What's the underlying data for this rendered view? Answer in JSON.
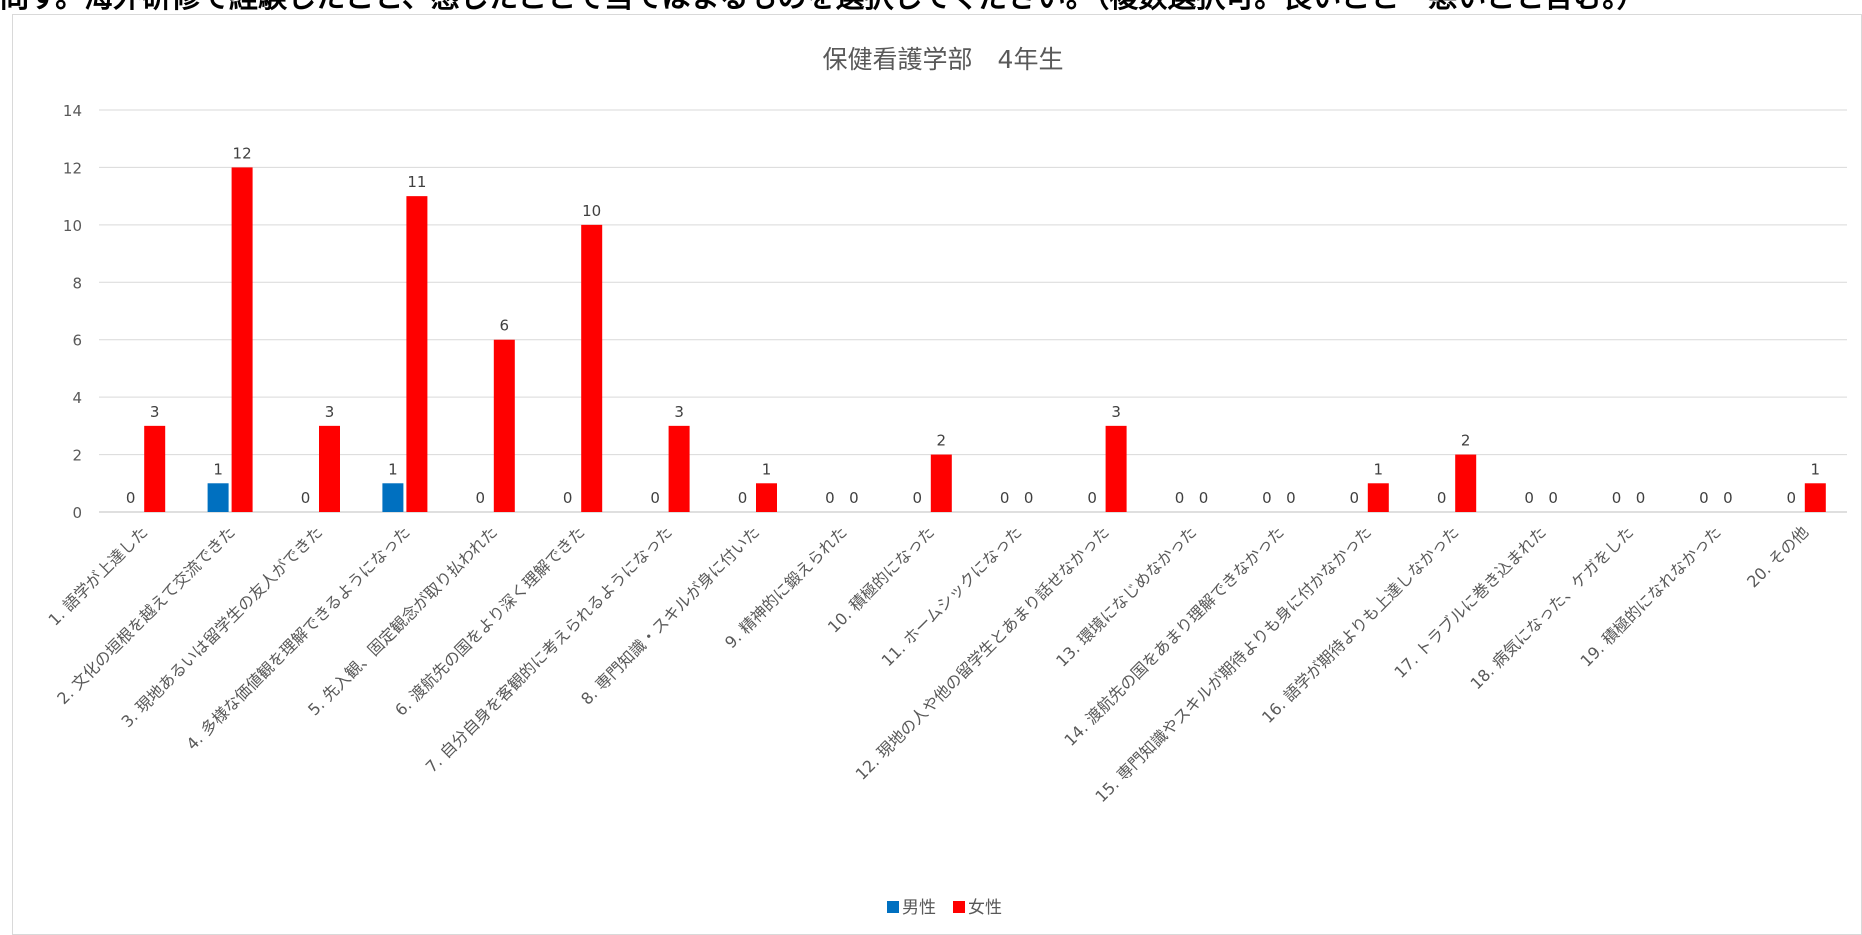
{
  "question": {
    "text": "問す。海外研修で経験したこと、感じたことで当てはまるものを選択してください。（複数選択可。良いこと・悪いこと含む。）"
  },
  "chart_data": {
    "type": "bar",
    "title": "保健看護学部　4年生",
    "xlabel": "",
    "ylabel": "",
    "ylim": [
      0,
      14
    ],
    "yticks": [
      0,
      2,
      4,
      6,
      8,
      10,
      12,
      14
    ],
    "grid": true,
    "legend_position": "bottom",
    "categories": [
      "1. 語学が上達した",
      "2. 文化の垣根を越えて交流できた",
      "3. 現地あるいは留学生の友人ができた",
      "4. 多様な価値観を理解できるようになった",
      "5. 先入観、固定観念が取り払われた",
      "6. 渡航先の国をより深く理解できた",
      "7. 自分自身を客観的に考えられるようになった",
      "8. 専門知識・スキルが身に付いた",
      "9. 精神的に鍛えられた",
      "10. 積極的になった",
      "11. ホームシックになった",
      "12. 現地の人や他の留学生とあまり話せなかった",
      "13. 環境になじめなかった",
      "14. 渡航先の国をあまり理解できなかった",
      "15. 専門知識やスキルが期待よりも身に付かなかった",
      "16. 語学が期待よりも上達しなかった",
      "17. トラブルに巻き込まれた",
      "18. 病気になった、ケガをした",
      "19. 積極的になれなかった",
      "20. その他"
    ],
    "series": [
      {
        "name": "男性",
        "color": "#0070c0",
        "values": [
          0,
          1,
          0,
          1,
          0,
          0,
          0,
          0,
          0,
          0,
          0,
          0,
          0,
          0,
          0,
          0,
          0,
          0,
          0,
          0
        ]
      },
      {
        "name": "女性",
        "color": "#ff0000",
        "values": [
          3,
          12,
          3,
          11,
          6,
          10,
          3,
          1,
          0,
          2,
          0,
          3,
          0,
          0,
          1,
          2,
          0,
          0,
          0,
          1
        ]
      }
    ]
  }
}
